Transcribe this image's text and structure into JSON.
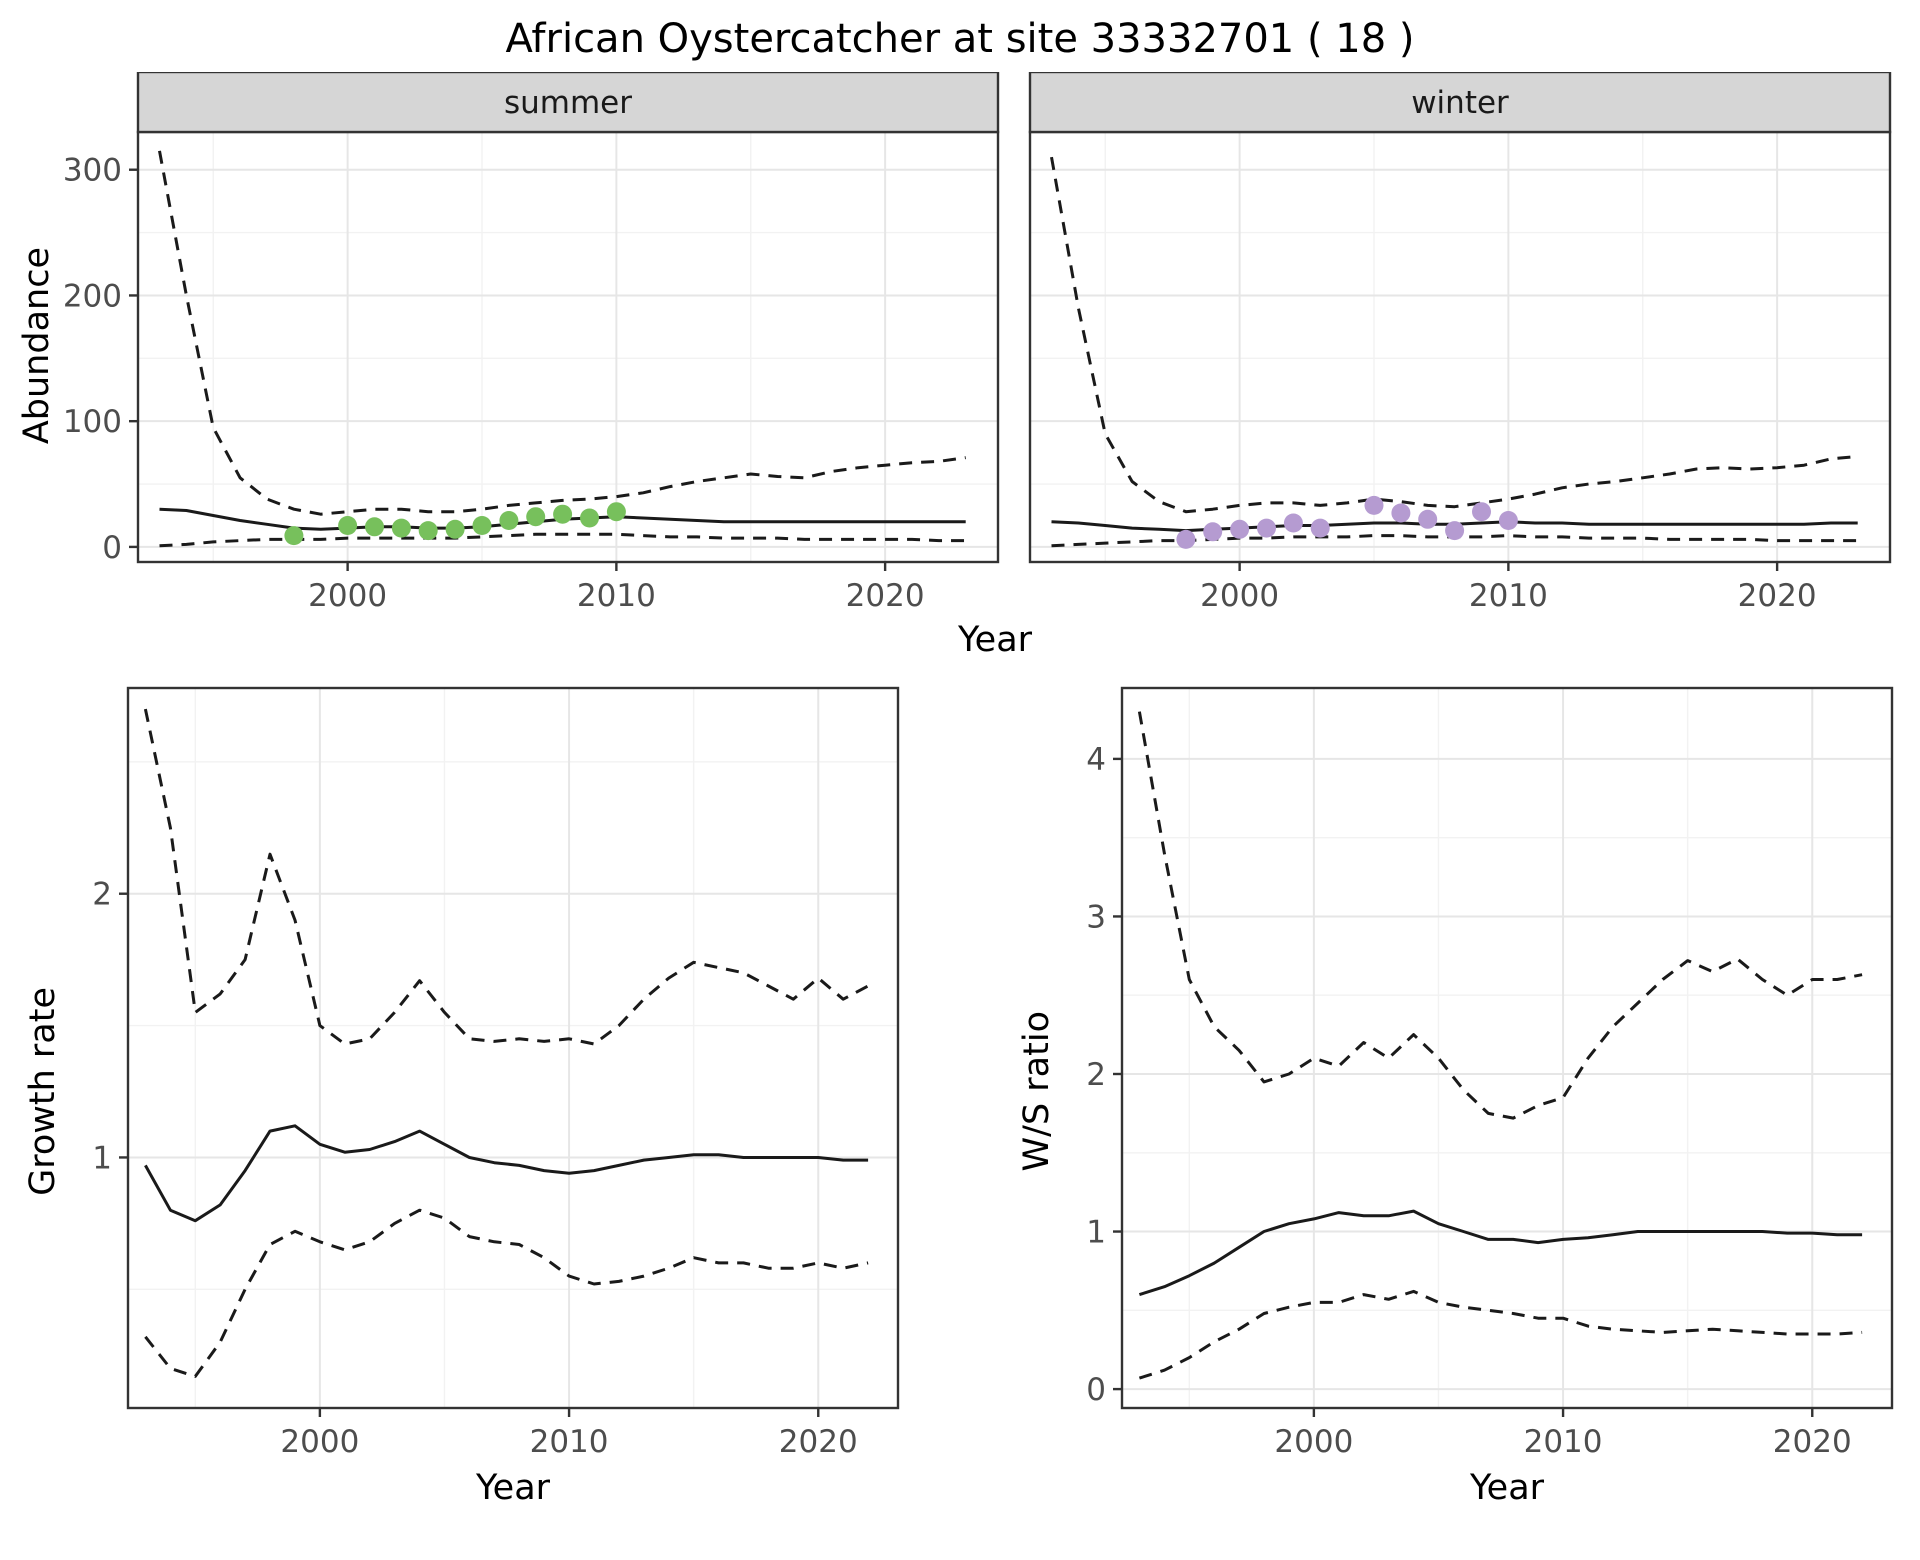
{
  "title": "African Oystercatcher at site 33332701 ( 18 )",
  "colors": {
    "line": "#1a1a1a",
    "grid": "#e6e6e6",
    "grid_minor": "#f2f2f2",
    "panel_border": "#333333",
    "strip_bg": "#d6d6d6",
    "strip_text": "#1a1a1a",
    "tick_text": "#4d4d4d",
    "summer_points": "#77c05c",
    "winter_points": "#b59bd1"
  },
  "chart_data": [
    {
      "id": "abundance-summer",
      "type": "line",
      "facet_label": "summer",
      "ylabel": "Abundance",
      "xlabel": "Year",
      "xlim": [
        1992.2,
        2024.2
      ],
      "ylim": [
        -12,
        330
      ],
      "xticks": [
        2000,
        2010,
        2020
      ],
      "yticks": [
        0,
        100,
        200,
        300
      ],
      "grid": true,
      "series": [
        {
          "name": "upper-ci",
          "style": "dashed",
          "x": [
            1993,
            1994,
            1995,
            1996,
            1997,
            1998,
            1999,
            2000,
            2001,
            2002,
            2003,
            2004,
            2005,
            2006,
            2007,
            2008,
            2009,
            2010,
            2011,
            2012,
            2013,
            2014,
            2015,
            2016,
            2017,
            2018,
            2019,
            2020,
            2021,
            2022,
            2023
          ],
          "y": [
            315,
            200,
            95,
            55,
            38,
            30,
            26,
            28,
            30,
            30,
            28,
            28,
            30,
            33,
            35,
            37,
            38,
            40,
            43,
            48,
            52,
            55,
            58,
            56,
            55,
            60,
            63,
            65,
            67,
            68,
            71
          ]
        },
        {
          "name": "fitted-mean",
          "style": "solid",
          "x": [
            1993,
            1994,
            1995,
            1996,
            1997,
            1998,
            1999,
            2000,
            2001,
            2002,
            2003,
            2004,
            2005,
            2006,
            2007,
            2008,
            2009,
            2010,
            2011,
            2012,
            2013,
            2014,
            2015,
            2016,
            2017,
            2018,
            2019,
            2020,
            2021,
            2022,
            2023
          ],
          "y": [
            30,
            29,
            25,
            21,
            18,
            15,
            14,
            15,
            16,
            16,
            15,
            15,
            16,
            18,
            20,
            22,
            23,
            24,
            23,
            22,
            21,
            20,
            20,
            20,
            20,
            20,
            20,
            20,
            20,
            20,
            20
          ]
        },
        {
          "name": "lower-ci",
          "style": "dashed",
          "x": [
            1993,
            1994,
            1995,
            1996,
            1997,
            1998,
            1999,
            2000,
            2001,
            2002,
            2003,
            2004,
            2005,
            2006,
            2007,
            2008,
            2009,
            2010,
            2011,
            2012,
            2013,
            2014,
            2015,
            2016,
            2017,
            2018,
            2019,
            2020,
            2021,
            2022,
            2023
          ],
          "y": [
            1,
            2,
            4,
            5,
            6,
            6,
            6,
            7,
            7,
            7,
            7,
            7,
            8,
            9,
            10,
            10,
            10,
            10,
            9,
            8,
            8,
            7,
            7,
            7,
            6,
            6,
            6,
            6,
            6,
            5,
            5
          ]
        }
      ],
      "points": {
        "name": "observed-summer",
        "color": "#77c05c",
        "x": [
          1998,
          2000,
          2001,
          2002,
          2003,
          2004,
          2005,
          2006,
          2007,
          2008,
          2009,
          2010
        ],
        "y": [
          9,
          17,
          16,
          15,
          13,
          14,
          17,
          21,
          24,
          26,
          23,
          28
        ]
      }
    },
    {
      "id": "abundance-winter",
      "type": "line",
      "facet_label": "winter",
      "ylabel": "Abundance",
      "xlabel": "Year",
      "xlim": [
        1992.2,
        2024.2
      ],
      "ylim": [
        -12,
        330
      ],
      "xticks": [
        2000,
        2010,
        2020
      ],
      "yticks": [
        0,
        100,
        200,
        300
      ],
      "grid": true,
      "series": [
        {
          "name": "upper-ci",
          "style": "dashed",
          "x": [
            1993,
            1994,
            1995,
            1996,
            1997,
            1998,
            1999,
            2000,
            2001,
            2002,
            2003,
            2004,
            2005,
            2006,
            2007,
            2008,
            2009,
            2010,
            2011,
            2012,
            2013,
            2014,
            2015,
            2016,
            2017,
            2018,
            2019,
            2020,
            2021,
            2022,
            2023
          ],
          "y": [
            310,
            190,
            90,
            52,
            36,
            28,
            30,
            33,
            35,
            35,
            33,
            35,
            38,
            36,
            33,
            32,
            35,
            38,
            42,
            47,
            50,
            52,
            55,
            58,
            62,
            63,
            62,
            63,
            65,
            70,
            72
          ]
        },
        {
          "name": "fitted-mean",
          "style": "solid",
          "x": [
            1993,
            1994,
            1995,
            1996,
            1997,
            1998,
            1999,
            2000,
            2001,
            2002,
            2003,
            2004,
            2005,
            2006,
            2007,
            2008,
            2009,
            2010,
            2011,
            2012,
            2013,
            2014,
            2015,
            2016,
            2017,
            2018,
            2019,
            2020,
            2021,
            2022,
            2023
          ],
          "y": [
            20,
            19,
            17,
            15,
            14,
            13,
            14,
            15,
            16,
            17,
            17,
            18,
            19,
            19,
            18,
            18,
            19,
            20,
            19,
            19,
            18,
            18,
            18,
            18,
            18,
            18,
            18,
            18,
            18,
            19,
            19
          ]
        },
        {
          "name": "lower-ci",
          "style": "dashed",
          "x": [
            1993,
            1994,
            1995,
            1996,
            1997,
            1998,
            1999,
            2000,
            2001,
            2002,
            2003,
            2004,
            2005,
            2006,
            2007,
            2008,
            2009,
            2010,
            2011,
            2012,
            2013,
            2014,
            2015,
            2016,
            2017,
            2018,
            2019,
            2020,
            2021,
            2022,
            2023
          ],
          "y": [
            1,
            2,
            3,
            4,
            5,
            5,
            6,
            7,
            7,
            8,
            8,
            8,
            9,
            9,
            8,
            8,
            8,
            9,
            8,
            8,
            7,
            7,
            7,
            6,
            6,
            6,
            6,
            5,
            5,
            5,
            5
          ]
        }
      ],
      "points": {
        "name": "observed-winter",
        "color": "#b59bd1",
        "x": [
          1998,
          1999,
          2000,
          2001,
          2002,
          2003,
          2005,
          2006,
          2007,
          2008,
          2009,
          2010
        ],
        "y": [
          6,
          12,
          14,
          15,
          19,
          15,
          33,
          27,
          22,
          13,
          28,
          21
        ]
      }
    },
    {
      "id": "growth-rate",
      "type": "line",
      "facet_label": "",
      "ylabel": "Growth rate",
      "xlabel": "Year",
      "xlim": [
        1992.3,
        2023.2
      ],
      "ylim": [
        0.05,
        2.78
      ],
      "xticks": [
        2000,
        2010,
        2020
      ],
      "yticks": [
        1,
        2
      ],
      "grid": true,
      "series": [
        {
          "name": "upper-ci",
          "style": "dashed",
          "x": [
            1993,
            1994,
            1995,
            1996,
            1997,
            1998,
            1999,
            2000,
            2001,
            2002,
            2003,
            2004,
            2005,
            2006,
            2007,
            2008,
            2009,
            2010,
            2011,
            2012,
            2013,
            2014,
            2015,
            2016,
            2017,
            2018,
            2019,
            2020,
            2021,
            2022
          ],
          "y": [
            2.7,
            2.25,
            1.55,
            1.62,
            1.75,
            2.15,
            1.9,
            1.5,
            1.43,
            1.45,
            1.55,
            1.67,
            1.55,
            1.45,
            1.44,
            1.45,
            1.44,
            1.45,
            1.43,
            1.5,
            1.6,
            1.68,
            1.74,
            1.72,
            1.7,
            1.65,
            1.6,
            1.68,
            1.6,
            1.65
          ]
        },
        {
          "name": "fitted-mean",
          "style": "solid",
          "x": [
            1993,
            1994,
            1995,
            1996,
            1997,
            1998,
            1999,
            2000,
            2001,
            2002,
            2003,
            2004,
            2005,
            2006,
            2007,
            2008,
            2009,
            2010,
            2011,
            2012,
            2013,
            2014,
            2015,
            2016,
            2017,
            2018,
            2019,
            2020,
            2021,
            2022
          ],
          "y": [
            0.97,
            0.8,
            0.76,
            0.82,
            0.95,
            1.1,
            1.12,
            1.05,
            1.02,
            1.03,
            1.06,
            1.1,
            1.05,
            1.0,
            0.98,
            0.97,
            0.95,
            0.94,
            0.95,
            0.97,
            0.99,
            1.0,
            1.01,
            1.01,
            1.0,
            1.0,
            1.0,
            1.0,
            0.99,
            0.99
          ]
        },
        {
          "name": "lower-ci",
          "style": "dashed",
          "x": [
            1993,
            1994,
            1995,
            1996,
            1997,
            1998,
            1999,
            2000,
            2001,
            2002,
            2003,
            2004,
            2005,
            2006,
            2007,
            2008,
            2009,
            2010,
            2011,
            2012,
            2013,
            2014,
            2015,
            2016,
            2017,
            2018,
            2019,
            2020,
            2021,
            2022
          ],
          "y": [
            0.32,
            0.2,
            0.17,
            0.3,
            0.5,
            0.67,
            0.72,
            0.68,
            0.65,
            0.68,
            0.75,
            0.8,
            0.77,
            0.7,
            0.68,
            0.67,
            0.62,
            0.55,
            0.52,
            0.53,
            0.55,
            0.58,
            0.62,
            0.6,
            0.6,
            0.58,
            0.58,
            0.6,
            0.58,
            0.6
          ]
        }
      ]
    },
    {
      "id": "ws-ratio",
      "type": "line",
      "facet_label": "",
      "ylabel": "W/S ratio",
      "xlabel": "Year",
      "xlim": [
        1992.3,
        2023.2
      ],
      "ylim": [
        -0.12,
        4.45
      ],
      "xticks": [
        2000,
        2010,
        2020
      ],
      "yticks": [
        0,
        1,
        2,
        3,
        4
      ],
      "grid": true,
      "series": [
        {
          "name": "upper-ci",
          "style": "dashed",
          "x": [
            1993,
            1994,
            1995,
            1996,
            1997,
            1998,
            1999,
            2000,
            2001,
            2002,
            2003,
            2004,
            2005,
            2006,
            2007,
            2008,
            2009,
            2010,
            2011,
            2012,
            2013,
            2014,
            2015,
            2016,
            2017,
            2018,
            2019,
            2020,
            2021,
            2022
          ],
          "y": [
            4.3,
            3.4,
            2.6,
            2.3,
            2.15,
            1.95,
            2.0,
            2.1,
            2.05,
            2.2,
            2.1,
            2.25,
            2.1,
            1.9,
            1.75,
            1.72,
            1.8,
            1.85,
            2.1,
            2.3,
            2.45,
            2.6,
            2.72,
            2.65,
            2.73,
            2.6,
            2.5,
            2.6,
            2.6,
            2.63
          ]
        },
        {
          "name": "fitted-mean",
          "style": "solid",
          "x": [
            1993,
            1994,
            1995,
            1996,
            1997,
            1998,
            1999,
            2000,
            2001,
            2002,
            2003,
            2004,
            2005,
            2006,
            2007,
            2008,
            2009,
            2010,
            2011,
            2012,
            2013,
            2014,
            2015,
            2016,
            2017,
            2018,
            2019,
            2020,
            2021,
            2022
          ],
          "y": [
            0.6,
            0.65,
            0.72,
            0.8,
            0.9,
            1.0,
            1.05,
            1.08,
            1.12,
            1.1,
            1.1,
            1.13,
            1.05,
            1.0,
            0.95,
            0.95,
            0.93,
            0.95,
            0.96,
            0.98,
            1.0,
            1.0,
            1.0,
            1.0,
            1.0,
            1.0,
            0.99,
            0.99,
            0.98,
            0.98
          ]
        },
        {
          "name": "lower-ci",
          "style": "dashed",
          "x": [
            1993,
            1994,
            1995,
            1996,
            1997,
            1998,
            1999,
            2000,
            2001,
            2002,
            2003,
            2004,
            2005,
            2006,
            2007,
            2008,
            2009,
            2010,
            2011,
            2012,
            2013,
            2014,
            2015,
            2016,
            2017,
            2018,
            2019,
            2020,
            2021,
            2022
          ],
          "y": [
            0.07,
            0.12,
            0.2,
            0.3,
            0.38,
            0.48,
            0.52,
            0.55,
            0.55,
            0.6,
            0.57,
            0.62,
            0.55,
            0.52,
            0.5,
            0.48,
            0.45,
            0.45,
            0.4,
            0.38,
            0.37,
            0.36,
            0.37,
            0.38,
            0.37,
            0.36,
            0.35,
            0.35,
            0.35,
            0.36
          ]
        }
      ]
    }
  ]
}
